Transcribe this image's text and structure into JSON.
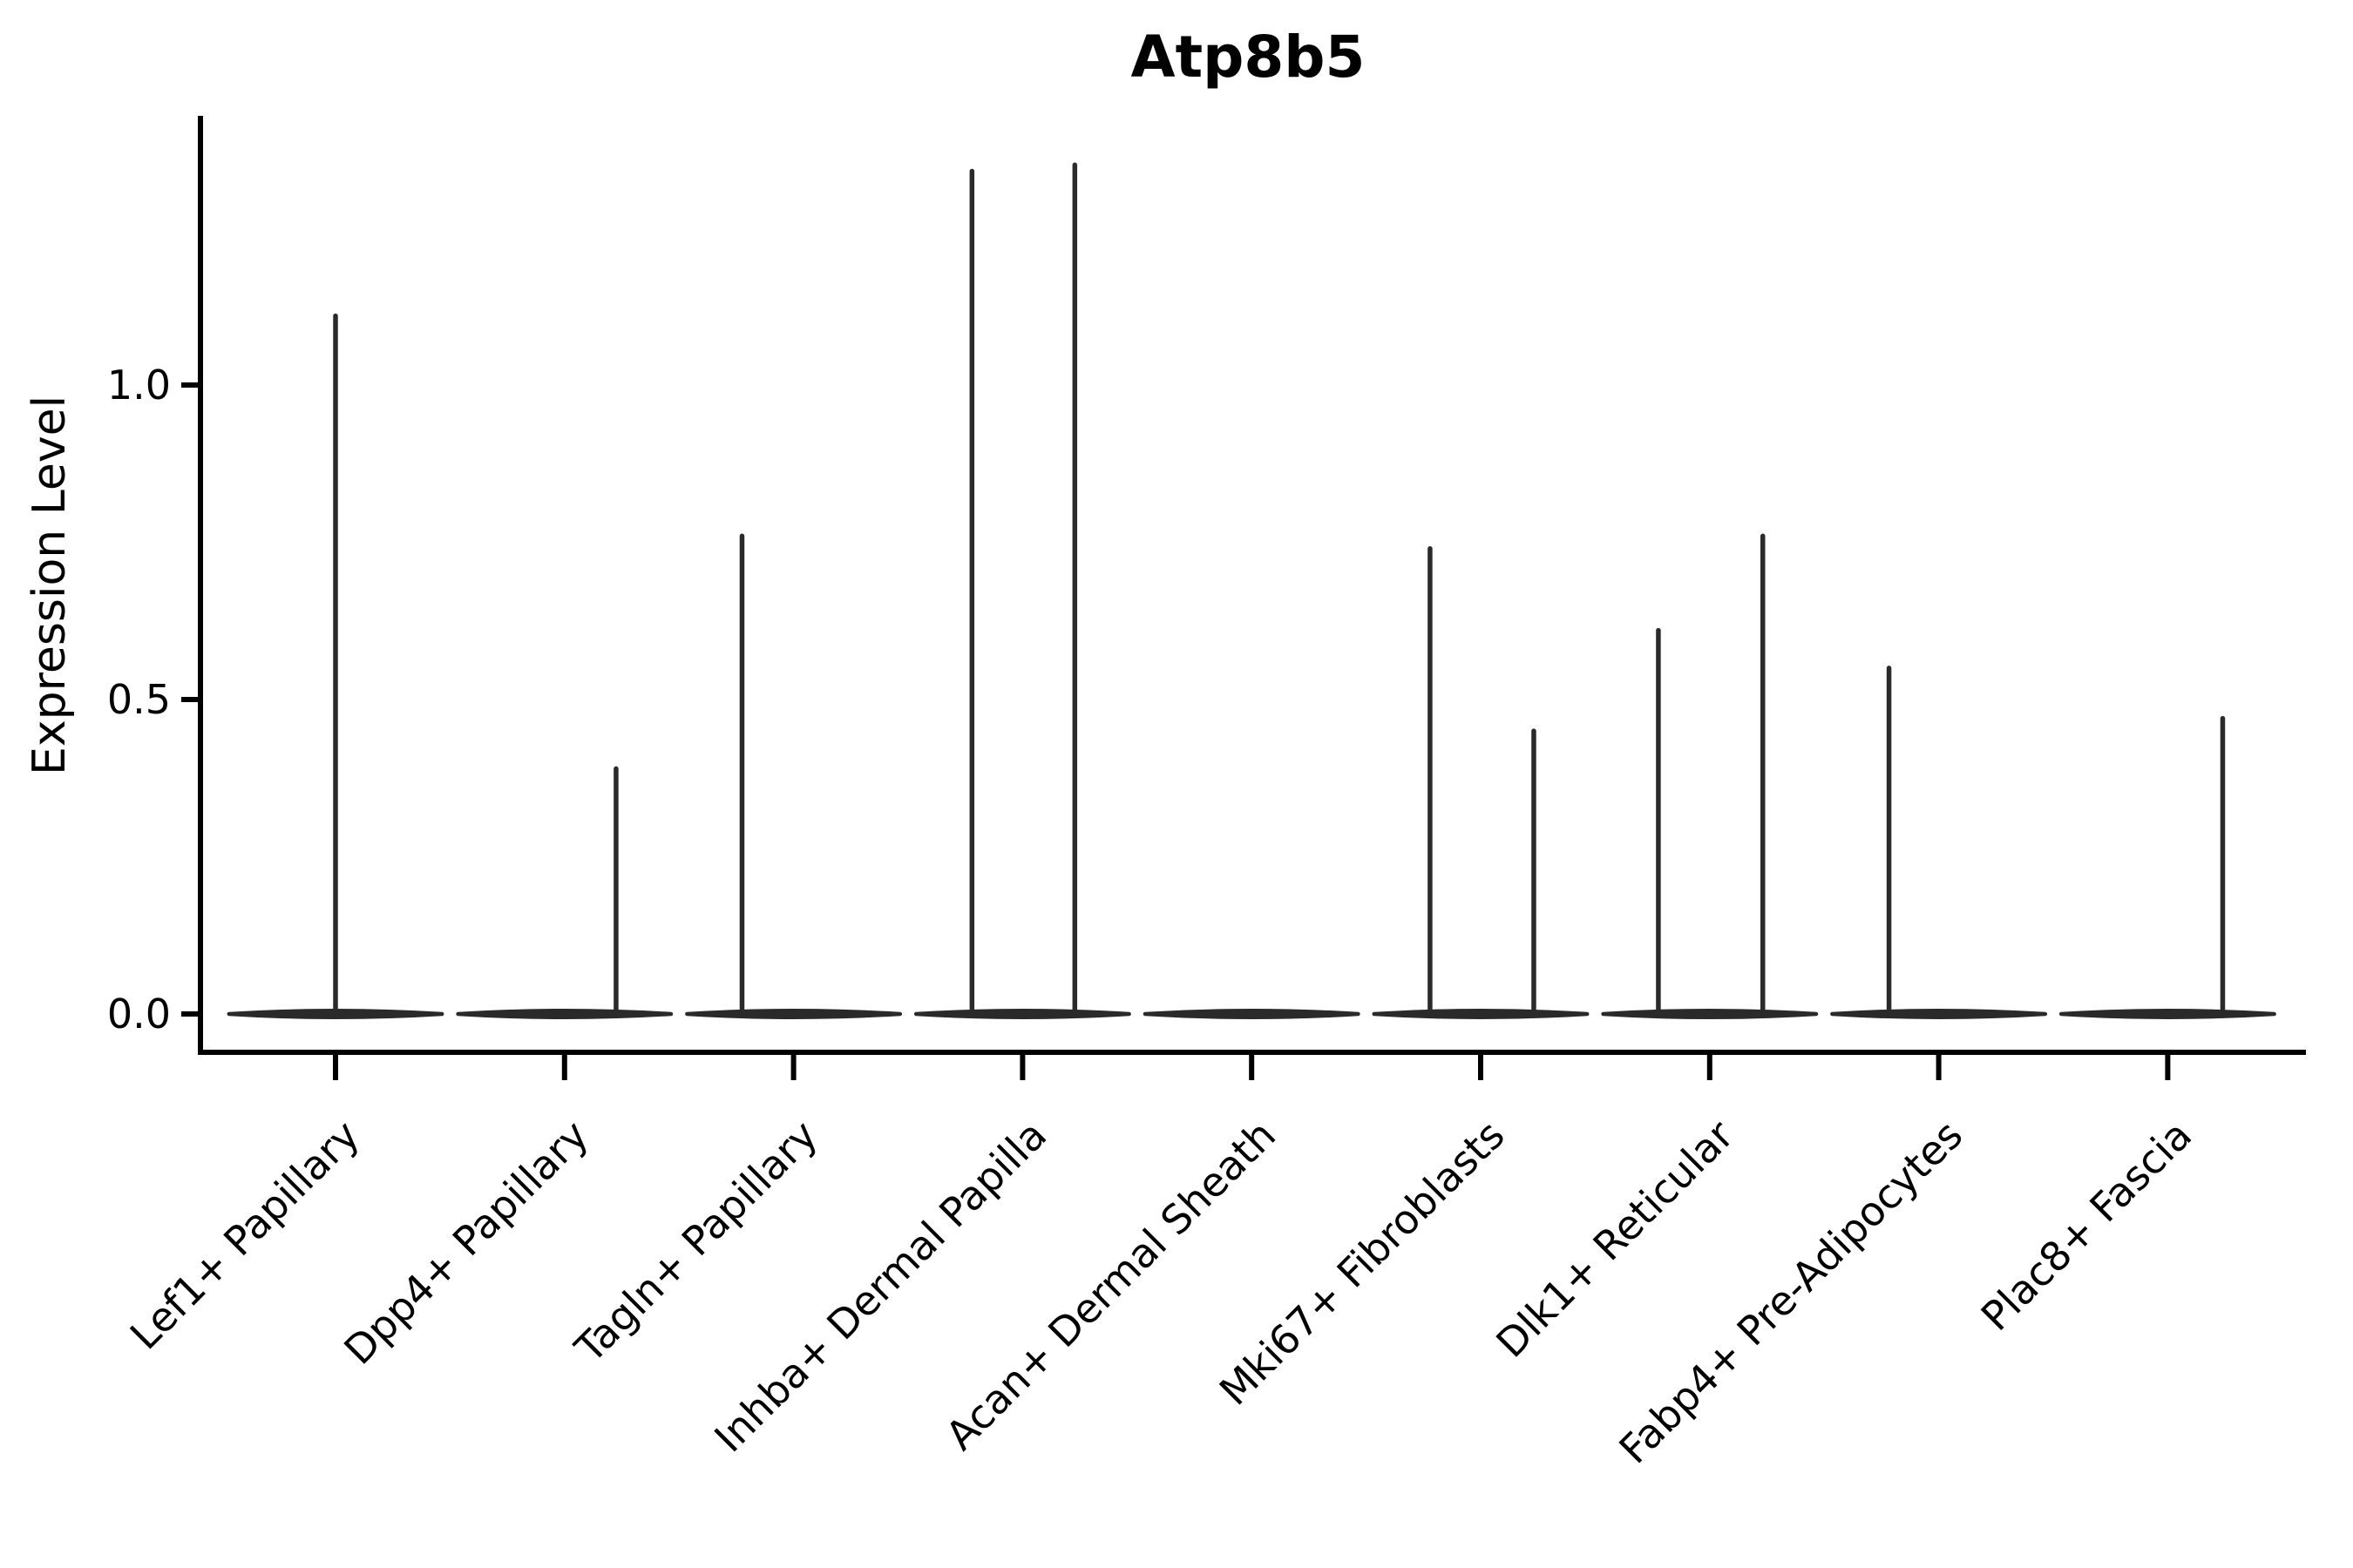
{
  "figure": {
    "title": "Atp8b5",
    "ylabel": "Expression Level",
    "xlabel": ""
  },
  "chart_data": {
    "type": "violin",
    "title": "Atp8b5",
    "ylabel": "Expression Level",
    "xlabel": "",
    "ylim": [
      -0.06,
      1.43
    ],
    "yticks": [
      0.0,
      0.5,
      1.0
    ],
    "ytick_labels": [
      "0.0",
      "0.5",
      "1.0"
    ],
    "grid": false,
    "legend": "none",
    "x_tick_rotation_degrees": 45,
    "categories": [
      "Lef1+ Papillary",
      "Dpp4+ Papillary",
      "Tagln+ Papillary",
      "Inhba+ Dermal Papilla",
      "Acan+ Dermal Sheath",
      "Mki67+ Fibroblasts",
      "Dlk1+ Reticular",
      "Fabp4+ Pre-Adipocytes",
      "Plac8+ Fascia"
    ],
    "violins": [
      {
        "category": "Lef1+ Papillary",
        "base_value": 0.0,
        "base_halfwidth_frac": 0.465,
        "spikes": [
          {
            "offset_frac": 0.0,
            "max_value": 1.11
          }
        ]
      },
      {
        "category": "Dpp4+ Papillary",
        "base_value": 0.0,
        "base_halfwidth_frac": 0.465,
        "spikes": [
          {
            "offset_frac": 0.225,
            "max_value": 0.39
          }
        ]
      },
      {
        "category": "Tagln+ Papillary",
        "base_value": 0.0,
        "base_halfwidth_frac": 0.465,
        "spikes": [
          {
            "offset_frac": -0.225,
            "max_value": 0.76
          }
        ]
      },
      {
        "category": "Inhba+ Dermal Papilla",
        "base_value": 0.0,
        "base_halfwidth_frac": 0.465,
        "spikes": [
          {
            "offset_frac": -0.221,
            "max_value": 1.34
          },
          {
            "offset_frac": 0.228,
            "max_value": 1.35
          }
        ]
      },
      {
        "category": "Acan+ Dermal Sheath",
        "base_value": 0.0,
        "base_halfwidth_frac": 0.465,
        "spikes": []
      },
      {
        "category": "Mki67+ Fibroblasts",
        "base_value": 0.0,
        "base_halfwidth_frac": 0.465,
        "spikes": [
          {
            "offset_frac": -0.221,
            "max_value": 0.74
          },
          {
            "offset_frac": 0.232,
            "max_value": 0.45
          }
        ]
      },
      {
        "category": "Dlk1+ Reticular",
        "base_value": 0.0,
        "base_halfwidth_frac": 0.465,
        "spikes": [
          {
            "offset_frac": -0.224,
            "max_value": 0.61
          },
          {
            "offset_frac": 0.232,
            "max_value": 0.76
          }
        ]
      },
      {
        "category": "Fabp4+ Pre-Adipocytes",
        "base_value": 0.0,
        "base_halfwidth_frac": 0.465,
        "spikes": [
          {
            "offset_frac": -0.217,
            "max_value": 0.55
          }
        ]
      },
      {
        "category": "Plac8+ Fascia",
        "base_value": 0.0,
        "base_halfwidth_frac": 0.465,
        "spikes": [
          {
            "offset_frac": 0.24,
            "max_value": 0.47
          }
        ]
      }
    ],
    "colors": {
      "violin": "#2a2a2a",
      "axis": "#000000",
      "text": "#000000",
      "background": "#ffffff"
    }
  }
}
